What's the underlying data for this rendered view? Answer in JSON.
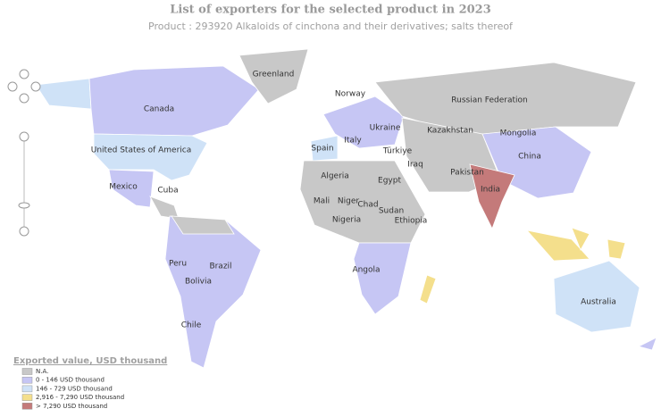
{
  "header": {
    "title": "List of exporters for the selected product in 2023",
    "subtitle": "Product : 293920 Alkaloids of cinchona and their derivatives; salts thereof"
  },
  "labels": [
    "Greenland",
    "Canada",
    "United States of America",
    "Mexico",
    "Cuba",
    "Norway",
    "Russian Federation",
    "Ukraine",
    "Kazakhstan",
    "Mongolia",
    "Spain",
    "Italy",
    "Türkiye",
    "China",
    "Iraq",
    "Pakistan",
    "Algeria",
    "Egypt",
    "India",
    "Mali",
    "Niger",
    "Chad",
    "Sudan",
    "Nigeria",
    "Ethiopia",
    "Peru",
    "Brazil",
    "Bolivia",
    "Angola",
    "Australia",
    "Chile"
  ],
  "legend": {
    "title": "Exported value, USD thousand",
    "items": [
      {
        "label": "N.A.",
        "color": "#c8c8c8"
      },
      {
        "label": "0 - 146 USD thousand",
        "color": "#c6c6f4"
      },
      {
        "label": "146 - 729 USD thousand",
        "color": "#cfe2f7"
      },
      {
        "label": "2,916 - 7,290 USD thousand",
        "color": "#f4df8c"
      },
      {
        "label": "> 7,290 USD thousand",
        "color": "#c47a7a"
      }
    ]
  }
}
